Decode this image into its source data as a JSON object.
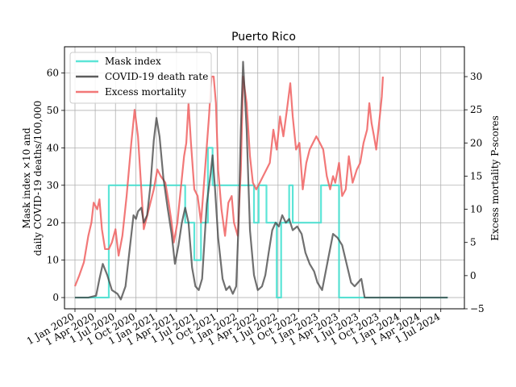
{
  "chart_data": {
    "type": "line",
    "title": "Puerto Rico",
    "ylabel_left_line1": "Mask index ×10 and",
    "ylabel_left_line2": "daily COVID-19 deaths/100,000",
    "ylabel_right": "Excess mortality P-scores",
    "xlabel": "",
    "x_date_range": [
      "2019-11-15",
      "2024-10-15"
    ],
    "ylim_left": [
      -3,
      67
    ],
    "ylim_right": [
      -5,
      34.5
    ],
    "grid": true,
    "legend_position": "top-left",
    "x_ticks": [
      {
        "date": "2020-01-01",
        "label": "1 Jan 2020"
      },
      {
        "date": "2020-04-01",
        "label": "1 Apr 2020"
      },
      {
        "date": "2020-07-01",
        "label": "1 Jul 2020"
      },
      {
        "date": "2020-10-01",
        "label": "1 Oct 2020"
      },
      {
        "date": "2021-01-01",
        "label": "1 Jan 2021"
      },
      {
        "date": "2021-04-01",
        "label": "1 Apr 2021"
      },
      {
        "date": "2021-07-01",
        "label": "1 Jul 2021"
      },
      {
        "date": "2021-10-01",
        "label": "1 Oct 2021"
      },
      {
        "date": "2022-01-01",
        "label": "1 Jan 2022"
      },
      {
        "date": "2022-04-01",
        "label": "1 Apr 2022"
      },
      {
        "date": "2022-07-01",
        "label": "1 Jul 2022"
      },
      {
        "date": "2022-10-01",
        "label": "1 Oct 2022"
      },
      {
        "date": "2023-01-01",
        "label": "1 Jan 2023"
      },
      {
        "date": "2023-04-01",
        "label": "1 Apr 2023"
      },
      {
        "date": "2023-07-01",
        "label": "1 Jul 2023"
      },
      {
        "date": "2023-10-01",
        "label": "1 Oct 2023"
      },
      {
        "date": "2024-01-01",
        "label": "1 Jan 2024"
      },
      {
        "date": "2024-04-01",
        "label": "1 Apr 2024"
      },
      {
        "date": "2024-07-01",
        "label": "1 Jul 2024"
      }
    ],
    "y_ticks_left": [
      0,
      10,
      20,
      30,
      40,
      50,
      60
    ],
    "y_ticks_right": [
      -5,
      0,
      5,
      10,
      15,
      20,
      25,
      30
    ],
    "series": [
      {
        "name": "Mask index",
        "color": "#40e0d0",
        "axis": "left",
        "step": true,
        "points": [
          [
            "2020-01-01",
            0
          ],
          [
            "2020-06-01",
            0
          ],
          [
            "2020-06-01",
            30
          ],
          [
            "2021-05-10",
            30
          ],
          [
            "2021-05-10",
            20
          ],
          [
            "2021-06-20",
            20
          ],
          [
            "2021-06-20",
            10
          ],
          [
            "2021-07-20",
            10
          ],
          [
            "2021-07-20",
            20
          ],
          [
            "2021-08-20",
            20
          ],
          [
            "2021-08-20",
            40
          ],
          [
            "2021-09-10",
            40
          ],
          [
            "2021-09-10",
            30
          ],
          [
            "2022-03-15",
            30
          ],
          [
            "2022-03-15",
            20
          ],
          [
            "2022-04-05",
            20
          ],
          [
            "2022-04-05",
            30
          ],
          [
            "2022-05-10",
            30
          ],
          [
            "2022-05-10",
            20
          ],
          [
            "2022-06-25",
            20
          ],
          [
            "2022-06-25",
            0
          ],
          [
            "2022-07-15",
            0
          ],
          [
            "2022-07-15",
            20
          ],
          [
            "2022-08-20",
            20
          ],
          [
            "2022-08-20",
            30
          ],
          [
            "2022-09-05",
            30
          ],
          [
            "2022-09-05",
            20
          ],
          [
            "2023-01-10",
            20
          ],
          [
            "2023-01-10",
            30
          ],
          [
            "2023-04-01",
            30
          ],
          [
            "2023-04-01",
            0
          ],
          [
            "2024-08-01",
            0
          ]
        ]
      },
      {
        "name": "COVID-19 death rate",
        "color": "#404040",
        "axis": "left",
        "points": [
          [
            "2020-01-01",
            0
          ],
          [
            "2020-03-01",
            0
          ],
          [
            "2020-04-05",
            0.5
          ],
          [
            "2020-04-20",
            5
          ],
          [
            "2020-05-05",
            9
          ],
          [
            "2020-05-25",
            6
          ],
          [
            "2020-06-15",
            2
          ],
          [
            "2020-07-10",
            1
          ],
          [
            "2020-07-25",
            -0.5
          ],
          [
            "2020-08-15",
            3
          ],
          [
            "2020-09-01",
            12
          ],
          [
            "2020-09-20",
            22
          ],
          [
            "2020-10-01",
            21
          ],
          [
            "2020-10-10",
            23
          ],
          [
            "2020-10-25",
            24
          ],
          [
            "2020-11-05",
            20
          ],
          [
            "2020-11-20",
            22
          ],
          [
            "2020-12-05",
            30
          ],
          [
            "2020-12-20",
            42
          ],
          [
            "2021-01-01",
            48
          ],
          [
            "2021-01-15",
            43
          ],
          [
            "2021-02-01",
            32
          ],
          [
            "2021-02-20",
            24
          ],
          [
            "2021-03-10",
            17
          ],
          [
            "2021-03-25",
            9
          ],
          [
            "2021-04-10",
            14
          ],
          [
            "2021-04-25",
            20
          ],
          [
            "2021-05-10",
            24
          ],
          [
            "2021-05-25",
            20
          ],
          [
            "2021-06-10",
            8
          ],
          [
            "2021-06-25",
            3
          ],
          [
            "2021-07-10",
            2
          ],
          [
            "2021-07-25",
            5
          ],
          [
            "2021-08-15",
            25
          ],
          [
            "2021-09-01",
            33
          ],
          [
            "2021-09-10",
            38
          ],
          [
            "2021-09-20",
            30
          ],
          [
            "2021-10-05",
            16
          ],
          [
            "2021-10-25",
            5
          ],
          [
            "2021-11-10",
            2
          ],
          [
            "2021-11-25",
            3
          ],
          [
            "2021-12-10",
            1
          ],
          [
            "2021-12-25",
            3
          ],
          [
            "2022-01-05",
            20
          ],
          [
            "2022-01-15",
            45
          ],
          [
            "2022-01-25",
            63
          ],
          [
            "2022-02-10",
            45
          ],
          [
            "2022-02-25",
            18
          ],
          [
            "2022-03-15",
            6
          ],
          [
            "2022-04-01",
            2
          ],
          [
            "2022-04-20",
            3
          ],
          [
            "2022-05-05",
            6
          ],
          [
            "2022-05-20",
            12
          ],
          [
            "2022-06-05",
            18
          ],
          [
            "2022-06-20",
            20
          ],
          [
            "2022-07-05",
            19
          ],
          [
            "2022-07-20",
            22
          ],
          [
            "2022-08-05",
            20
          ],
          [
            "2022-08-20",
            21
          ],
          [
            "2022-09-05",
            18
          ],
          [
            "2022-09-25",
            19
          ],
          [
            "2022-10-15",
            17
          ],
          [
            "2022-11-01",
            12
          ],
          [
            "2022-11-20",
            9
          ],
          [
            "2022-12-10",
            7
          ],
          [
            "2022-12-25",
            4
          ],
          [
            "2023-01-15",
            2
          ],
          [
            "2023-02-10",
            10
          ],
          [
            "2023-03-05",
            17
          ],
          [
            "2023-03-25",
            16
          ],
          [
            "2023-04-15",
            14
          ],
          [
            "2023-05-05",
            9
          ],
          [
            "2023-05-25",
            4
          ],
          [
            "2023-06-10",
            3
          ],
          [
            "2023-06-25",
            4
          ],
          [
            "2023-07-10",
            5
          ],
          [
            "2023-07-25",
            0
          ],
          [
            "2024-08-01",
            0
          ]
        ]
      },
      {
        "name": "Excess mortality",
        "color": "#f06060",
        "axis": "right",
        "points": [
          [
            "2020-01-01",
            -1.6
          ],
          [
            "2020-01-20",
            0
          ],
          [
            "2020-02-10",
            2
          ],
          [
            "2020-03-01",
            6
          ],
          [
            "2020-03-15",
            8
          ],
          [
            "2020-03-25",
            11
          ],
          [
            "2020-04-10",
            10
          ],
          [
            "2020-04-20",
            11.5
          ],
          [
            "2020-05-01",
            7
          ],
          [
            "2020-05-15",
            4
          ],
          [
            "2020-06-01",
            4
          ],
          [
            "2020-06-15",
            5
          ],
          [
            "2020-07-01",
            7
          ],
          [
            "2020-07-15",
            3
          ],
          [
            "2020-08-01",
            6
          ],
          [
            "2020-08-20",
            12
          ],
          [
            "2020-09-10",
            20
          ],
          [
            "2020-09-25",
            25
          ],
          [
            "2020-10-10",
            21
          ],
          [
            "2020-10-25",
            13
          ],
          [
            "2020-11-05",
            7
          ],
          [
            "2020-11-20",
            9
          ],
          [
            "2020-12-05",
            11
          ],
          [
            "2020-12-20",
            13
          ],
          [
            "2021-01-05",
            16
          ],
          [
            "2021-01-20",
            15
          ],
          [
            "2021-02-10",
            14
          ],
          [
            "2021-02-25",
            11
          ],
          [
            "2021-03-10",
            8
          ],
          [
            "2021-03-20",
            5
          ],
          [
            "2021-04-05",
            8
          ],
          [
            "2021-04-20",
            13
          ],
          [
            "2021-05-05",
            18
          ],
          [
            "2021-05-15",
            20
          ],
          [
            "2021-05-25",
            26
          ],
          [
            "2021-06-05",
            20
          ],
          [
            "2021-06-20",
            13
          ],
          [
            "2021-07-05",
            12
          ],
          [
            "2021-07-20",
            8
          ],
          [
            "2021-08-05",
            15
          ],
          [
            "2021-08-25",
            24
          ],
          [
            "2021-09-05",
            30
          ],
          [
            "2021-09-15",
            30
          ],
          [
            "2021-09-25",
            26
          ],
          [
            "2021-10-05",
            16
          ],
          [
            "2021-10-20",
            10
          ],
          [
            "2021-11-05",
            6
          ],
          [
            "2021-11-20",
            11
          ],
          [
            "2021-12-05",
            12
          ],
          [
            "2021-12-15",
            8
          ],
          [
            "2022-01-01",
            6
          ],
          [
            "2022-01-15",
            16
          ],
          [
            "2022-01-25",
            30
          ],
          [
            "2022-02-10",
            26
          ],
          [
            "2022-02-25",
            18
          ],
          [
            "2022-03-10",
            14
          ],
          [
            "2022-03-25",
            13
          ],
          [
            "2022-04-10",
            14
          ],
          [
            "2022-04-25",
            15
          ],
          [
            "2022-05-10",
            16
          ],
          [
            "2022-05-25",
            17
          ],
          [
            "2022-06-10",
            22
          ],
          [
            "2022-06-25",
            19
          ],
          [
            "2022-07-10",
            24
          ],
          [
            "2022-07-25",
            21
          ],
          [
            "2022-08-10",
            25
          ],
          [
            "2022-08-25",
            29
          ],
          [
            "2022-09-05",
            24
          ],
          [
            "2022-09-20",
            19
          ],
          [
            "2022-10-05",
            20
          ],
          [
            "2022-10-20",
            13
          ],
          [
            "2022-11-05",
            17
          ],
          [
            "2022-11-20",
            19
          ],
          [
            "2022-12-05",
            20
          ],
          [
            "2022-12-20",
            21
          ],
          [
            "2023-01-05",
            20
          ],
          [
            "2023-01-20",
            19
          ],
          [
            "2023-02-05",
            15
          ],
          [
            "2023-02-20",
            13
          ],
          [
            "2023-03-05",
            15
          ],
          [
            "2023-03-15",
            14
          ],
          [
            "2023-04-01",
            17
          ],
          [
            "2023-04-15",
            12
          ],
          [
            "2023-05-01",
            13
          ],
          [
            "2023-05-15",
            18
          ],
          [
            "2023-06-01",
            14
          ],
          [
            "2023-06-20",
            16
          ],
          [
            "2023-07-05",
            17
          ],
          [
            "2023-07-20",
            20
          ],
          [
            "2023-08-05",
            22
          ],
          [
            "2023-08-15",
            26
          ],
          [
            "2023-08-25",
            23
          ],
          [
            "2023-09-05",
            21
          ],
          [
            "2023-09-15",
            19
          ],
          [
            "2023-10-01",
            24
          ],
          [
            "2023-10-10",
            27
          ],
          [
            "2023-10-15",
            30
          ]
        ]
      }
    ]
  }
}
